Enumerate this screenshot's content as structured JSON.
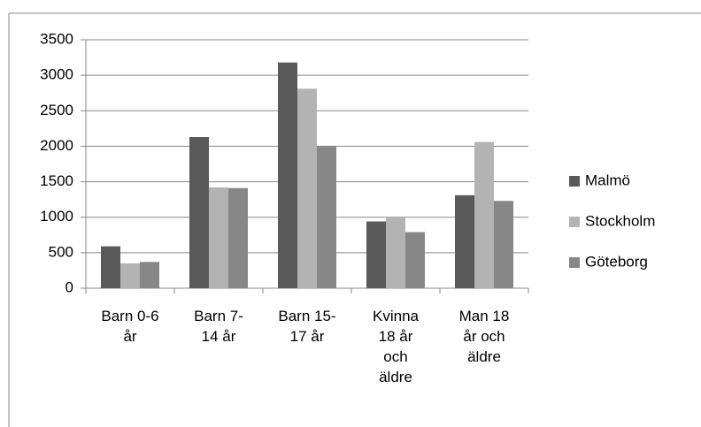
{
  "chart_data": {
    "type": "bar",
    "categories": [
      "Barn 0-6\når",
      "Barn 7-\n14 år",
      "Barn 15-\n17 år",
      "Kvinna\n18 år\noch\näldre",
      "Man 18\når och\näldre"
    ],
    "series": [
      {
        "name": "Malmö",
        "color": "#595959",
        "values": [
          590,
          2130,
          3180,
          940,
          1310
        ]
      },
      {
        "name": "Stockholm",
        "color": "#b3b3b3",
        "values": [
          350,
          1420,
          2810,
          1010,
          2060
        ]
      },
      {
        "name": "Göteborg",
        "color": "#878787",
        "values": [
          370,
          1410,
          2000,
          790,
          1230
        ]
      }
    ],
    "ylim": [
      0,
      3500
    ],
    "yticks": [
      0,
      500,
      1000,
      1500,
      2000,
      2500,
      3000,
      3500
    ],
    "grid": true,
    "legend": "right"
  }
}
